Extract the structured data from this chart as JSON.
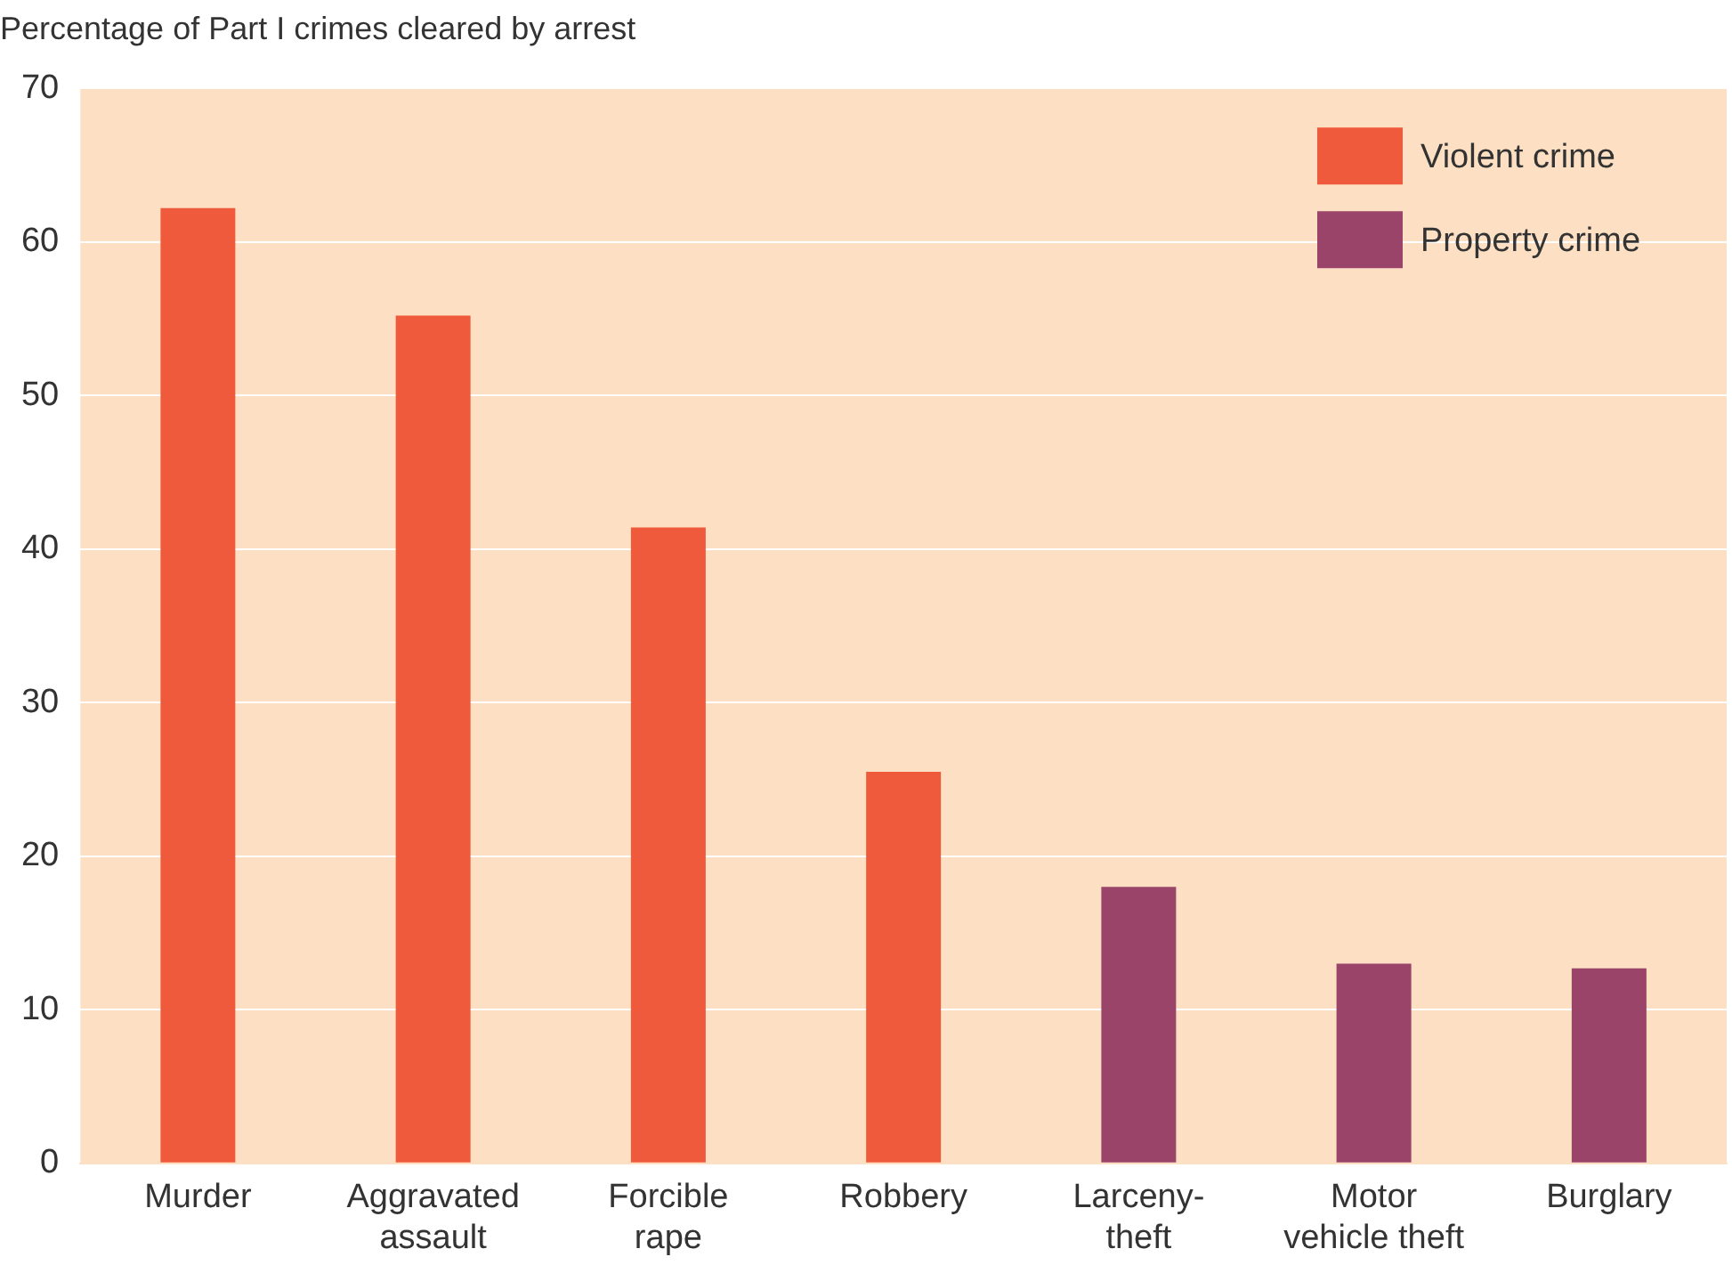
{
  "chart_data": {
    "type": "bar",
    "title": "Percentage of Part I crimes cleared by arrest",
    "categories": [
      "Murder",
      "Aggravated assault",
      "Forcible rape",
      "Robbery",
      "Larceny-theft",
      "Motor vehicle theft",
      "Burglary"
    ],
    "series": [
      {
        "name": "Violent crime",
        "color": "#f05a3c",
        "values": [
          62.2,
          55.2,
          41.4,
          25.5,
          null,
          null,
          null
        ]
      },
      {
        "name": "Property crime",
        "color": "#9b4469",
        "values": [
          null,
          null,
          null,
          null,
          18.0,
          13.0,
          12.7
        ]
      }
    ],
    "ylim": [
      0,
      70
    ],
    "yticks": [
      0,
      10,
      20,
      30,
      40,
      50,
      60,
      70
    ],
    "grid": "y",
    "legend": "top right"
  }
}
